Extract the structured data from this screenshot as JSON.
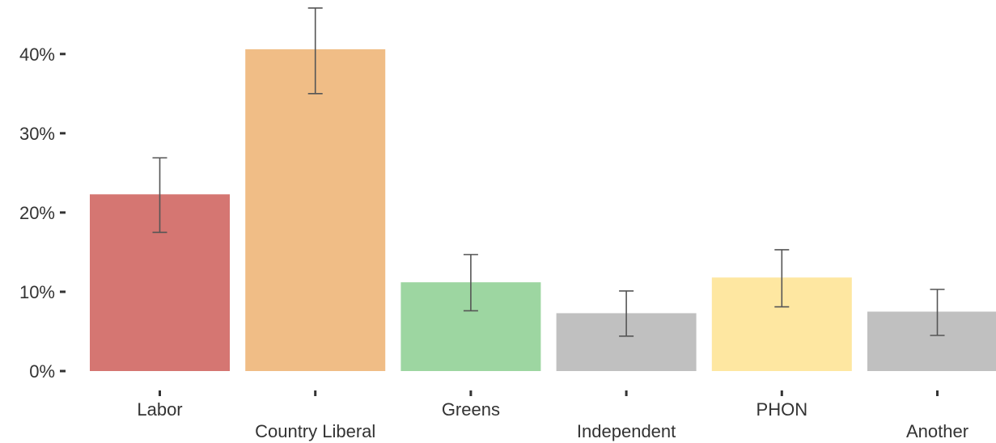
{
  "chart_data": {
    "type": "bar",
    "categories": [
      "Labor",
      "Country Liberal",
      "Greens",
      "Independent",
      "PHON",
      "Another"
    ],
    "values": [
      22.3,
      40.6,
      11.2,
      7.3,
      11.8,
      7.5
    ],
    "error_low": [
      17.5,
      35.0,
      7.6,
      4.4,
      8.1,
      4.5
    ],
    "error_high": [
      26.9,
      45.8,
      14.7,
      10.1,
      15.3,
      10.3
    ],
    "colors": [
      "#d57672",
      "#f0bd86",
      "#9dd6a1",
      "#c0c0c0",
      "#fee7a1",
      "#c0c0c0"
    ],
    "y_tick_labels": [
      "0%",
      "10%",
      "20%",
      "30%",
      "40%"
    ],
    "y_ticks": [
      0,
      10,
      20,
      30,
      40
    ],
    "ylim": [
      0,
      46
    ],
    "title": "",
    "xlabel": "",
    "ylabel": "",
    "grid": false,
    "legend": "none"
  }
}
